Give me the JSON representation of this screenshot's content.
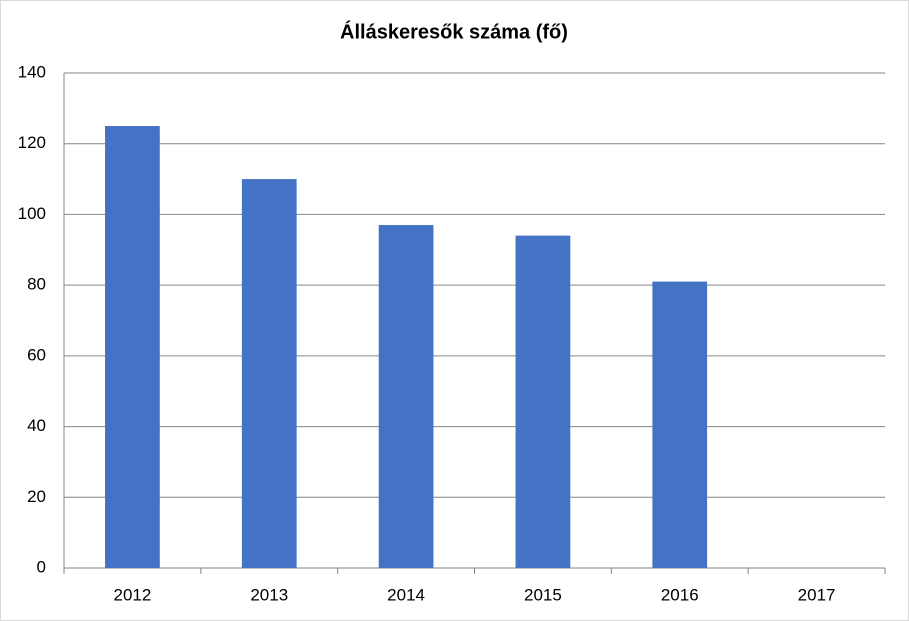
{
  "chart_data": {
    "type": "bar",
    "title": "Álláskeresők száma (fő)",
    "categories": [
      "2012",
      "2013",
      "2014",
      "2015",
      "2016",
      "2017"
    ],
    "values": [
      125,
      110,
      97,
      94,
      81,
      null
    ],
    "color": "#4472c4",
    "ylim": [
      0,
      140
    ],
    "yticks": [
      0,
      20,
      40,
      60,
      80,
      100,
      120,
      140
    ],
    "grid": true
  }
}
